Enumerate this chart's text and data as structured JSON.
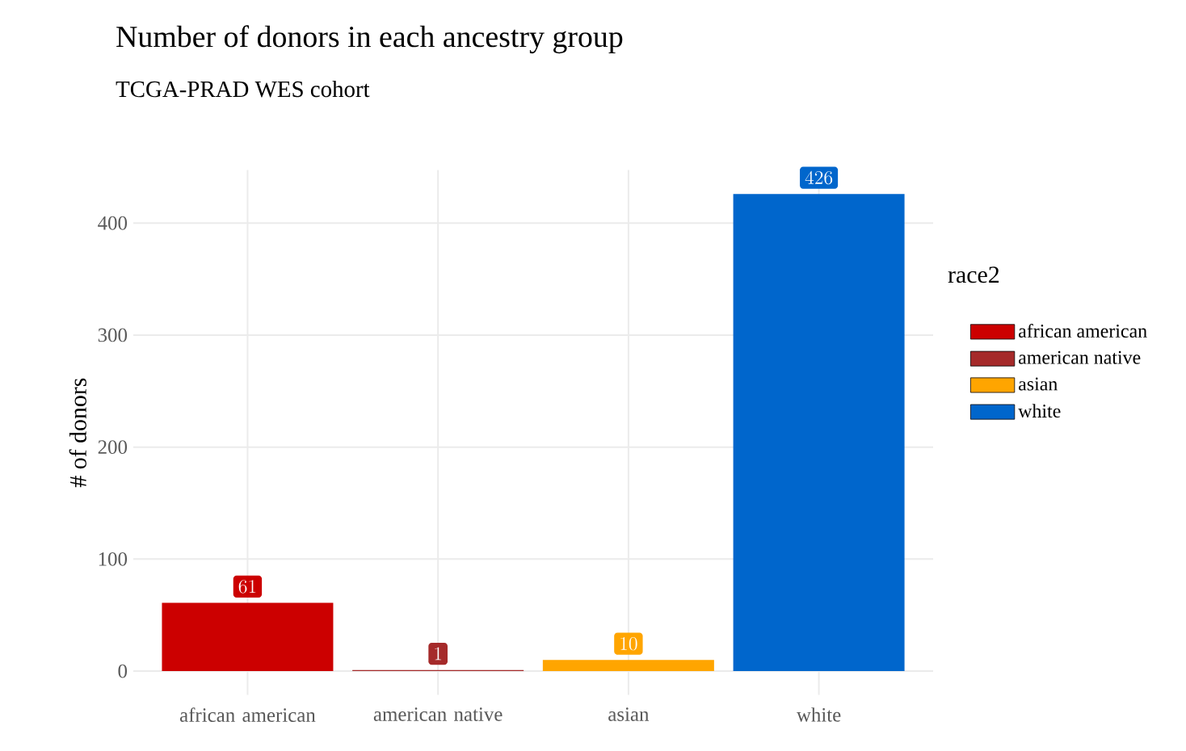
{
  "chart_data": {
    "type": "bar",
    "title": "Number of donors in each ancestry group",
    "subtitle": "TCGA-PRAD WES cohort",
    "ylabel": "# of donors",
    "legend_title": "race2",
    "categories": [
      "african american",
      "american native",
      "asian",
      "white"
    ],
    "series": [
      {
        "name": "african american",
        "color": "#cc0000",
        "values": [
          61,
          null,
          null,
          null
        ]
      },
      {
        "name": "american native",
        "color": "#a52a2a",
        "values": [
          null,
          1,
          null,
          null
        ]
      },
      {
        "name": "asian",
        "color": "#ffa500",
        "values": [
          null,
          null,
          10,
          null
        ]
      },
      {
        "name": "white",
        "color": "#0066cc",
        "values": [
          null,
          null,
          null,
          426
        ]
      }
    ],
    "ylim": [
      -21.3,
      447.3
    ],
    "yticks": [
      0,
      100,
      200,
      300,
      400
    ],
    "grid": true,
    "legend": "right",
    "data_labels": true
  }
}
